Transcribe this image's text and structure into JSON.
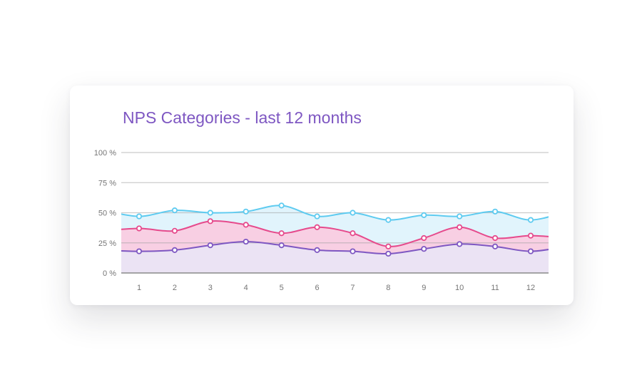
{
  "chart_data": {
    "type": "area",
    "title": "NPS Categories - last 12 months",
    "xlabel": "",
    "ylabel": "",
    "categories": [
      "1",
      "2",
      "3",
      "4",
      "5",
      "6",
      "7",
      "8",
      "9",
      "10",
      "11",
      "12"
    ],
    "y_ticks": [
      "0 %",
      "25 %",
      "50 %",
      "75 %",
      "100 %"
    ],
    "ylim": [
      0,
      100
    ],
    "grid": true,
    "legend": "none",
    "series": [
      {
        "color": "#5ecbf0",
        "fill": "#e1f4fc",
        "values": [
          47,
          52,
          50,
          51,
          56,
          47,
          50,
          44,
          48,
          47,
          51,
          44
        ]
      },
      {
        "color": "#e64a8c",
        "fill": "#f8cfe3",
        "values": [
          37,
          35,
          43,
          40,
          33,
          38,
          33,
          22,
          29,
          38,
          29,
          31
        ]
      },
      {
        "color": "#7e57c2",
        "fill": "#ebe3f4",
        "values": [
          18,
          19,
          23,
          26,
          23,
          19,
          18,
          16,
          20,
          24,
          22,
          18
        ]
      }
    ]
  }
}
